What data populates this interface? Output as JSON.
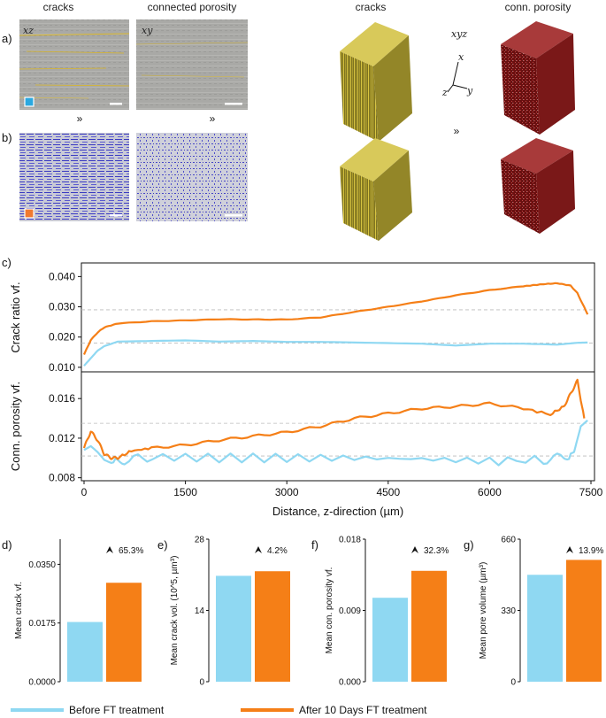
{
  "panel_labels": {
    "a": "a)",
    "b": "b)",
    "c": "c)",
    "d": "d)",
    "e": "e)",
    "f": "f)",
    "g": "g)"
  },
  "headers": [
    "cracks",
    "connected porosity",
    "cracks",
    "conn. porosity"
  ],
  "slice_labels": {
    "xz": "xz",
    "xy": "xy",
    "xyz": "xyz"
  },
  "axes_letters": {
    "x": "x",
    "y": "y",
    "z": "z"
  },
  "colors": {
    "before": "#8fd8f2",
    "after": "#f57f17",
    "crack": "#c9b22e",
    "pore": "#8a1c1c",
    "blue_pore": "#2c2ccc"
  },
  "chart_data": [
    {
      "type": "line",
      "ylabel": "Crack ratio vf.",
      "xlim": [
        0,
        7500
      ],
      "ylim": [
        0.0085,
        0.0445
      ],
      "yticks": [
        "0.040",
        "0.030",
        "0.020",
        "0.010"
      ],
      "ytick_values": [
        0.04,
        0.03,
        0.02,
        0.01
      ],
      "reference_lines": [
        0.029,
        0.018
      ],
      "series": [
        {
          "key": "before",
          "x": [
            0,
            100,
            200,
            300,
            500,
            1000,
            1500,
            2000,
            2500,
            3000,
            3500,
            4000,
            4500,
            5000,
            5500,
            6000,
            6500,
            7000,
            7300,
            7450
          ],
          "y": [
            0.0105,
            0.013,
            0.0155,
            0.017,
            0.0185,
            0.0187,
            0.0189,
            0.0185,
            0.0187,
            0.0184,
            0.0184,
            0.0182,
            0.018,
            0.0178,
            0.0172,
            0.0178,
            0.0178,
            0.0175,
            0.0181,
            0.0182
          ]
        },
        {
          "key": "after",
          "x": [
            0,
            100,
            200,
            300,
            500,
            1000,
            1500,
            2000,
            2500,
            3000,
            3500,
            4000,
            4500,
            5000,
            5500,
            6000,
            6500,
            6800,
            7000,
            7200,
            7300,
            7450
          ],
          "y": [
            0.0142,
            0.019,
            0.0215,
            0.0232,
            0.0245,
            0.0252,
            0.0255,
            0.0259,
            0.0258,
            0.0258,
            0.0265,
            0.0283,
            0.03,
            0.0318,
            0.0338,
            0.0355,
            0.0368,
            0.0375,
            0.0378,
            0.037,
            0.0345,
            0.0275
          ]
        }
      ]
    },
    {
      "type": "line",
      "ylabel": "Conn. porosity vf.",
      "xlabel": "Distance, z-direction (µm)",
      "xlim": [
        0,
        7500
      ],
      "ylim": [
        0.0077,
        0.0187
      ],
      "xticks": [
        "0",
        "1500",
        "3000",
        "4500",
        "6000",
        "7500"
      ],
      "xtick_values": [
        0,
        1500,
        3000,
        4500,
        6000,
        7500
      ],
      "yticks": [
        "0.016",
        "0.012",
        "0.008"
      ],
      "ytick_values": [
        0.016,
        0.012,
        0.008
      ],
      "reference_lines": [
        0.0135,
        0.0102
      ],
      "series": [
        {
          "key": "before",
          "x": [
            0,
            100,
            200,
            300,
            400,
            600,
            1000,
            2000,
            3000,
            4000,
            5000,
            6000,
            6800,
            7100,
            7250,
            7350,
            7450
          ],
          "y": [
            0.0108,
            0.0112,
            0.0106,
            0.0098,
            0.0095,
            0.0098,
            0.0101,
            0.01,
            0.01,
            0.01,
            0.0099,
            0.0097,
            0.0098,
            0.0101,
            0.0106,
            0.0132,
            0.0138
          ]
        },
        {
          "key": "after",
          "x": [
            0,
            100,
            200,
            300,
            400,
            500,
            700,
            1000,
            1500,
            2000,
            2500,
            3000,
            3500,
            4000,
            4500,
            5000,
            5500,
            6000,
            6500,
            6900,
            7100,
            7200,
            7300,
            7400
          ],
          "y": [
            0.011,
            0.0127,
            0.0118,
            0.0104,
            0.01,
            0.01,
            0.0107,
            0.011,
            0.0113,
            0.0118,
            0.0122,
            0.0126,
            0.0132,
            0.014,
            0.0145,
            0.015,
            0.0152,
            0.0155,
            0.015,
            0.0144,
            0.0152,
            0.0165,
            0.0178,
            0.014
          ]
        }
      ]
    },
    {
      "type": "bar",
      "panel": "d",
      "ylabel": "Mean crack vf.",
      "yticks": [
        "0.0350",
        "0.0175",
        "0.0000"
      ],
      "ytick_values": [
        0.035,
        0.0175,
        0
      ],
      "ylim": [
        0,
        0.0425
      ],
      "values": [
        0.0178,
        0.0295
      ],
      "annotation": "65.3%"
    },
    {
      "type": "bar",
      "panel": "e",
      "ylabel": "Mean crack vol. (10^5, µm³)",
      "yticks": [
        "28",
        "14",
        "0"
      ],
      "ytick_values": [
        28,
        14,
        0
      ],
      "ylim": [
        0,
        28
      ],
      "values": [
        20.8,
        21.7
      ],
      "annotation": "4.2%"
    },
    {
      "type": "bar",
      "panel": "f",
      "ylabel": "Mean con. porosity vf.",
      "yticks": [
        "0.018",
        "0.009",
        "0.000"
      ],
      "ytick_values": [
        0.018,
        0.009,
        0
      ],
      "ylim": [
        0,
        0.018
      ],
      "values": [
        0.0106,
        0.014
      ],
      "annotation": "32.3%"
    },
    {
      "type": "bar",
      "panel": "g",
      "ylabel": "Mean pore volume (µm³)",
      "yticks": [
        "660",
        "330",
        "0"
      ],
      "ytick_values": [
        660,
        330,
        0
      ],
      "ylim": [
        0,
        660
      ],
      "values": [
        495,
        564
      ],
      "annotation": "13.9%"
    }
  ],
  "legend": {
    "before": "Before FT treatment",
    "after": "After 10 Days FT treatment"
  }
}
